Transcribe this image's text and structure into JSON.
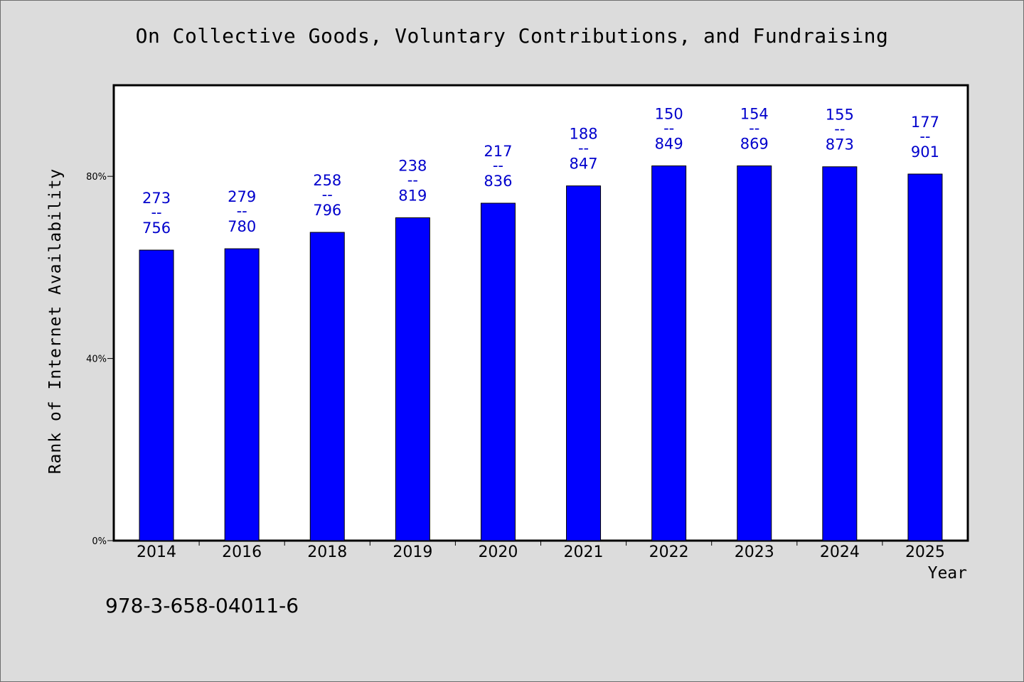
{
  "chart_data": {
    "type": "bar",
    "title": "On Collective Goods, Voluntary Contributions, and Fundraising",
    "xlabel": "Year",
    "ylabel": "Rank of Internet Availability",
    "categories": [
      "2014",
      "2016",
      "2018",
      "2019",
      "2020",
      "2021",
      "2022",
      "2023",
      "2024",
      "2025"
    ],
    "values": [
      63.8,
      64.1,
      67.7,
      70.9,
      74.1,
      77.9,
      82.3,
      82.3,
      82.1,
      80.5
    ],
    "data_labels_top": [
      "273",
      "279",
      "258",
      "238",
      "217",
      "188",
      "150",
      "154",
      "155",
      "177"
    ],
    "data_labels_bottom": [
      "756",
      "780",
      "796",
      "819",
      "836",
      "847",
      "849",
      "869",
      "873",
      "901"
    ],
    "label_separator": "--",
    "ylim": [
      0,
      100
    ],
    "yticks": [
      0,
      40,
      80
    ],
    "ytick_labels": [
      "0%",
      "40%",
      "80%"
    ],
    "grid": false,
    "bar_color": "#0000ff",
    "label_color": "#0000cc"
  },
  "footer": {
    "isbn": "978-3-658-04011-6"
  }
}
